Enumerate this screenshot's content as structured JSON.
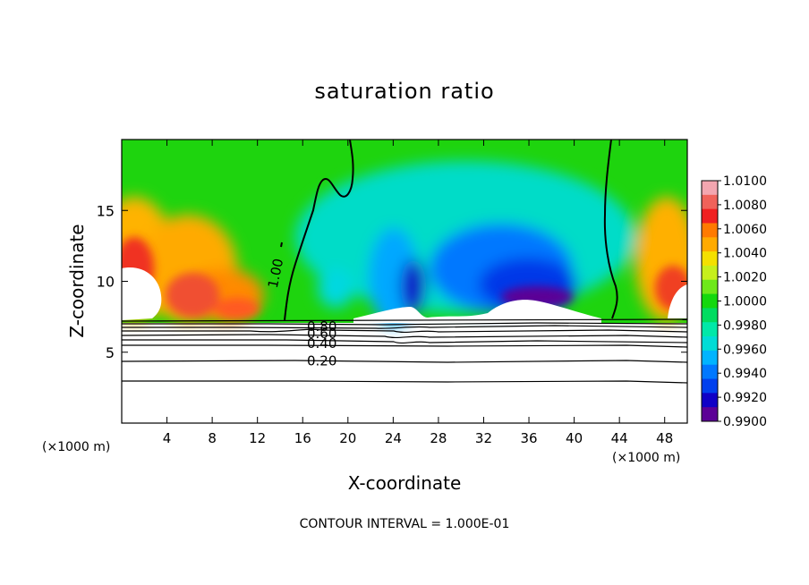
{
  "chart_data": {
    "type": "heatmap",
    "title": "saturation ratio",
    "xlabel": "X-coordinate",
    "ylabel": "Z-coordinate",
    "x_unit": "(×1000 m)",
    "xlim": [
      0,
      50
    ],
    "ylim": [
      0,
      20
    ],
    "x_ticks": [
      4,
      8,
      12,
      16,
      20,
      24,
      28,
      32,
      36,
      40,
      44,
      48
    ],
    "y_ticks": [
      5,
      10,
      15
    ],
    "colorbar": {
      "ticks": [
        "1.0100",
        "1.0080",
        "1.0060",
        "1.0040",
        "1.0020",
        "1.0000",
        "0.9980",
        "0.9960",
        "0.9940",
        "0.9920",
        "0.9900"
      ],
      "colors": [
        "#f3a6b0",
        "#f0625a",
        "#f02020",
        "#ff7a00",
        "#ffaa00",
        "#f4e000",
        "#c6ef1c",
        "#6ee81a",
        "#14d80e",
        "#00dc60",
        "#00e8a8",
        "#00dcd6",
        "#00b4ff",
        "#0078ff",
        "#0040ee",
        "#1000c6",
        "#5c0096"
      ]
    },
    "contour_labels": [
      {
        "text": "1.00",
        "x": 14.0,
        "z": 10.5
      },
      {
        "text": "0.80",
        "x": 17.8,
        "z": 6.8
      },
      {
        "text": "0.60",
        "x": 17.8,
        "z": 6.3
      },
      {
        "text": "0.40",
        "x": 17.8,
        "z": 5.6
      },
      {
        "text": "0.20",
        "x": 17.8,
        "z": 4.4
      }
    ],
    "annotation": "CONTOUR INTERVAL = 1.000E-01"
  }
}
